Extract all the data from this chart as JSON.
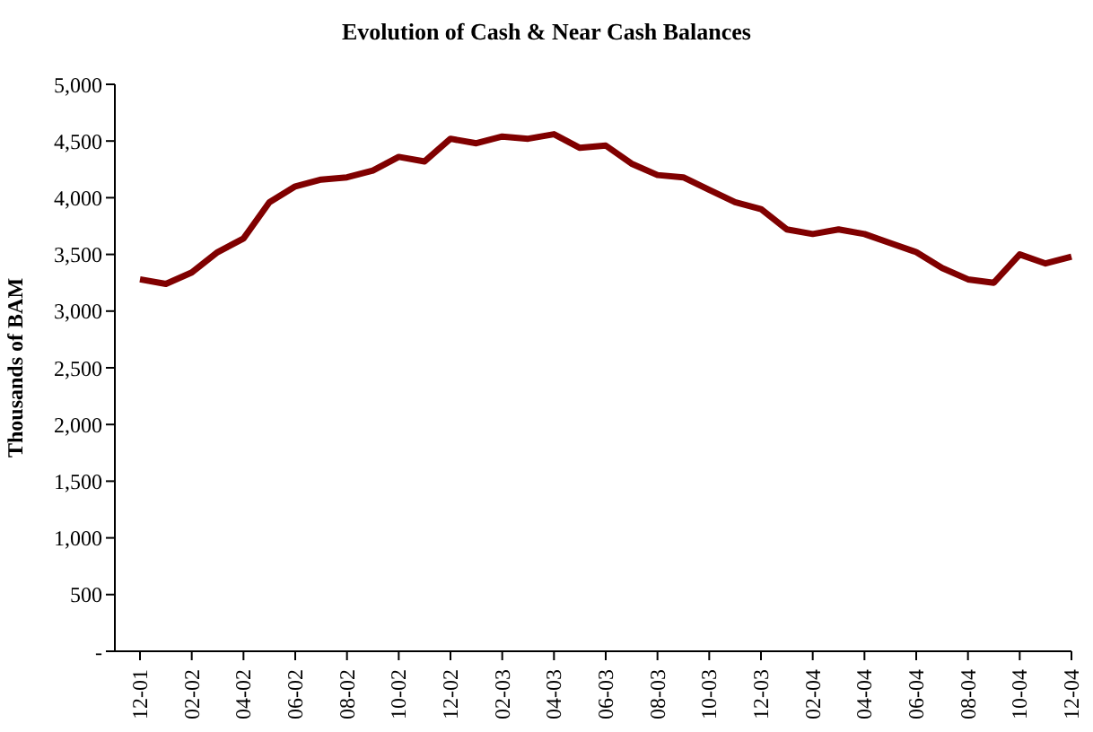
{
  "chart_data": {
    "type": "line",
    "title": "Evolution of Cash & Near Cash Balances",
    "ylabel": "Thousands of BAM",
    "categories": [
      "12-01",
      null,
      "02-02",
      null,
      "04-02",
      null,
      "06-02",
      null,
      "08-02",
      null,
      "10-02",
      null,
      "12-02",
      null,
      "02-03",
      null,
      "04-03",
      null,
      "06-03",
      null,
      "08-03",
      null,
      "10-03",
      null,
      "12-03",
      null,
      "02-04",
      null,
      "04-04",
      null,
      "06-04",
      null,
      "08-04",
      null,
      "10-04",
      null,
      "12-04"
    ],
    "series": [
      {
        "color": "#800000",
        "values": [
          3280,
          3240,
          3340,
          3520,
          3640,
          3960,
          4100,
          4160,
          4180,
          4240,
          4360,
          4320,
          4520,
          4480,
          4540,
          4520,
          4560,
          4440,
          4460,
          4300,
          4200,
          4180,
          4070,
          3960,
          3900,
          3720,
          3680,
          3720,
          3680,
          3600,
          3520,
          3380,
          3280,
          3250,
          3500,
          3420,
          3480
        ]
      }
    ],
    "ylim": [
      0,
      5000
    ],
    "yticks": [
      {
        "value": 0,
        "label": "-"
      },
      {
        "value": 500,
        "label": "500"
      },
      {
        "value": 1000,
        "label": "1,000"
      },
      {
        "value": 1500,
        "label": "1,500"
      },
      {
        "value": 2000,
        "label": "2,000"
      },
      {
        "value": 2500,
        "label": "2,500"
      },
      {
        "value": 3000,
        "label": "3,000"
      },
      {
        "value": 3500,
        "label": "3,500"
      },
      {
        "value": 4000,
        "label": "4,000"
      },
      {
        "value": 4500,
        "label": "4,500"
      },
      {
        "value": 5000,
        "label": "5,000"
      }
    ],
    "grid": false,
    "legend": false,
    "marker": "none",
    "line_style": "solid"
  }
}
